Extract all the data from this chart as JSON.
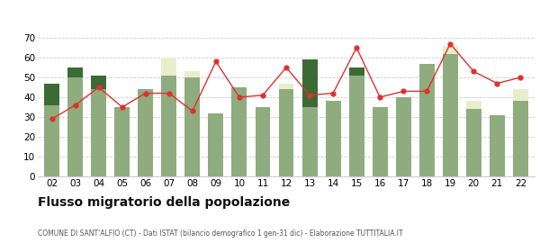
{
  "years": [
    "02",
    "03",
    "04",
    "05",
    "06",
    "07",
    "08",
    "09",
    "10",
    "11",
    "12",
    "13",
    "14",
    "15",
    "16",
    "17",
    "18",
    "19",
    "20",
    "21",
    "22"
  ],
  "iscritti_comuni": [
    36,
    50,
    44,
    35,
    44,
    51,
    50,
    32,
    45,
    35,
    44,
    35,
    38,
    51,
    35,
    40,
    57,
    62,
    34,
    31,
    38
  ],
  "iscritti_estero": [
    0,
    0,
    0,
    0,
    0,
    9,
    3,
    0,
    0,
    0,
    3,
    0,
    0,
    0,
    0,
    0,
    0,
    4,
    4,
    0,
    6
  ],
  "iscritti_altri": [
    11,
    5,
    7,
    0,
    0,
    0,
    0,
    0,
    0,
    0,
    0,
    24,
    0,
    4,
    0,
    0,
    0,
    0,
    0,
    0,
    0
  ],
  "cancellati": [
    29,
    36,
    45,
    35,
    42,
    42,
    33,
    58,
    40,
    41,
    55,
    41,
    42,
    65,
    40,
    43,
    43,
    67,
    53,
    47,
    50
  ],
  "color_comuni": "#8fac7e",
  "color_estero": "#e8eecc",
  "color_altri": "#3a6b35",
  "color_cancellati": "#e03030",
  "color_grid": "#cccccc",
  "ylim": [
    0,
    70
  ],
  "yticks": [
    0,
    10,
    20,
    30,
    40,
    50,
    60,
    70
  ],
  "title": "Flusso migratorio della popolazione",
  "subtitle": "COMUNE DI SANT'ALFIO (CT) - Dati ISTAT (bilancio demografico 1 gen-31 dic) - Elaborazione TUTTITALIA.IT",
  "bg_color": "#ffffff"
}
